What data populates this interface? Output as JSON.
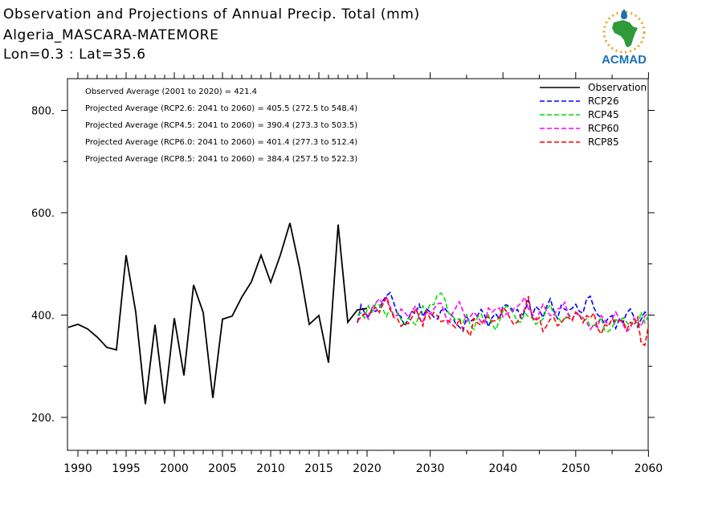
{
  "header": {
    "title": "Observation and Projections of Annual Precip. Total (mm)",
    "location": "Algeria_MASCARA-MATEMORE",
    "coords": "Lon=0.3 : Lat=35.6"
  },
  "logo": {
    "text": "ACMAD",
    "icon": "africa-map-logo"
  },
  "colors": {
    "observation": "#000000",
    "RCP26": "#0000ff",
    "RCP45": "#00dd00",
    "RCP60": "#ff00ff",
    "RCP85": "#ff0000",
    "logo_green": "#2e9a3a",
    "logo_blue": "#1a6fb5",
    "logo_orange": "#f0a020"
  },
  "chart_data": {
    "type": "line",
    "title": "Observation and Projections of Annual Precip. Total (mm)",
    "xlabel": "",
    "ylabel": "",
    "xlim": [
      1989,
      2060
    ],
    "ylim": [
      140,
      860
    ],
    "x_ticks_labeled_early": [
      "1990",
      "1995",
      "2000",
      "2005",
      "2010",
      "2015",
      "2020"
    ],
    "x_ticks_labeled_late": [
      "2030",
      "2040",
      "2050",
      "2060"
    ],
    "y_ticks": [
      "200.",
      "400.",
      "600.",
      "800."
    ],
    "grid": false,
    "legend_position": "top-right",
    "annotations": [
      "Observed Average (2001 to 2020) = 421.4",
      "Projected Average (RCP2.6: 2041 to 2060) = 405.5 (272.5 to 548.4)",
      "Projected Average (RCP4.5: 2041 to 2060) = 390.4 (273.3 to 503.5)",
      "Projected Average (RCP6.0: 2041 to 2060) = 401.4 (277.3 to 512.4)",
      "Projected Average (RCP8.5: 2041 to 2060) = 384.4 (257.5 to 522.3)"
    ],
    "observation": {
      "name": "Observation",
      "x": [
        1989,
        1990,
        1991,
        1992,
        1993,
        1994,
        1995,
        1996,
        1997,
        1998,
        1999,
        2000,
        2001,
        2002,
        2003,
        2004,
        2005,
        2006,
        2007,
        2008,
        2009,
        2010,
        2011,
        2012,
        2013,
        2014,
        2015,
        2016,
        2017,
        2018,
        2019,
        2020
      ],
      "y": [
        376,
        382,
        373,
        357,
        337,
        332,
        517,
        406,
        226,
        381,
        227,
        394,
        282,
        459,
        405,
        238,
        392,
        398,
        435,
        465,
        517,
        464,
        517,
        580,
        492,
        382,
        399,
        307,
        577,
        386,
        410,
        413
      ]
    },
    "projections": {
      "x_start": 2020,
      "x_step": 0.5,
      "series": [
        {
          "name": "RCP26",
          "values": [
            385,
            420,
            404,
            397,
            412,
            407,
            413,
            428,
            438,
            444,
            424,
            401,
            397,
            378,
            393,
            407,
            403,
            421,
            397,
            412,
            406,
            396,
            392,
            409,
            413,
            404,
            399,
            383,
            377,
            369,
            396,
            387,
            393,
            399,
            411,
            399,
            377,
            395,
            403,
            392,
            418,
            420,
            415,
            407,
            411,
            394,
            408,
            429,
            398,
            417,
            410,
            395,
            417,
            432,
            408,
            393,
            419,
            411,
            409,
            413,
            421,
            407,
            404,
            432,
            437,
            414,
            401,
            394,
            383,
            395,
            399,
            374,
            392,
            385,
            404,
            412,
            396,
            377,
            392,
            406,
            401
          ]
        },
        {
          "name": "RCP45",
          "values": [
            400,
            404,
            394,
            418,
            405,
            422,
            420,
            411,
            397,
            415,
            400,
            406,
            391,
            382,
            394,
            388,
            381,
            400,
            418,
            405,
            422,
            420,
            440,
            443,
            432,
            404,
            400,
            390,
            393,
            385,
            401,
            380,
            372,
            396,
            402,
            386,
            400,
            383,
            371,
            388,
            408,
            418,
            411,
            403,
            386,
            387,
            404,
            397,
            395,
            382,
            387,
            392,
            412,
            420,
            401,
            397,
            387,
            393,
            403,
            391,
            405,
            402,
            387,
            393,
            378,
            380,
            386,
            395,
            369,
            368,
            375,
            391,
            388,
            395,
            386,
            378,
            392,
            380,
            406,
            385,
            400
          ]
        },
        {
          "name": "RCP60",
          "values": [
            388,
            397,
            404,
            392,
            414,
            423,
            432,
            422,
            436,
            416,
            396,
            400,
            412,
            405,
            396,
            408,
            418,
            393,
            387,
            407,
            402,
            412,
            422,
            423,
            403,
            381,
            402,
            414,
            426,
            408,
            387,
            397,
            406,
            397,
            387,
            384,
            414,
            406,
            412,
            414,
            396,
            403,
            405,
            413,
            417,
            424,
            435,
            412,
            403,
            391,
            404,
            421,
            408,
            399,
            399,
            412,
            414,
            425,
            399,
            392,
            403,
            400,
            395,
            386,
            372,
            381,
            376,
            399,
            390,
            380,
            392,
            406,
            393,
            382,
            368,
            374,
            394,
            386,
            378,
            398,
            405
          ]
        },
        {
          "name": "RCP85",
          "values": [
            388,
            396,
            402,
            400,
            409,
            415,
            405,
            421,
            434,
            411,
            395,
            393,
            378,
            385,
            383,
            396,
            412,
            397,
            379,
            408,
            393,
            405,
            398,
            387,
            390,
            389,
            382,
            375,
            392,
            372,
            371,
            359,
            393,
            385,
            380,
            394,
            396,
            388,
            389,
            395,
            415,
            407,
            393,
            381,
            387,
            401,
            412,
            437,
            396,
            389,
            395,
            368,
            379,
            392,
            395,
            379,
            384,
            395,
            395,
            389,
            406,
            400,
            385,
            399,
            394,
            404,
            374,
            363,
            381,
            378,
            393,
            387,
            389,
            389,
            371,
            386,
            380,
            396,
            345,
            341,
            380
          ]
        }
      ]
    }
  }
}
